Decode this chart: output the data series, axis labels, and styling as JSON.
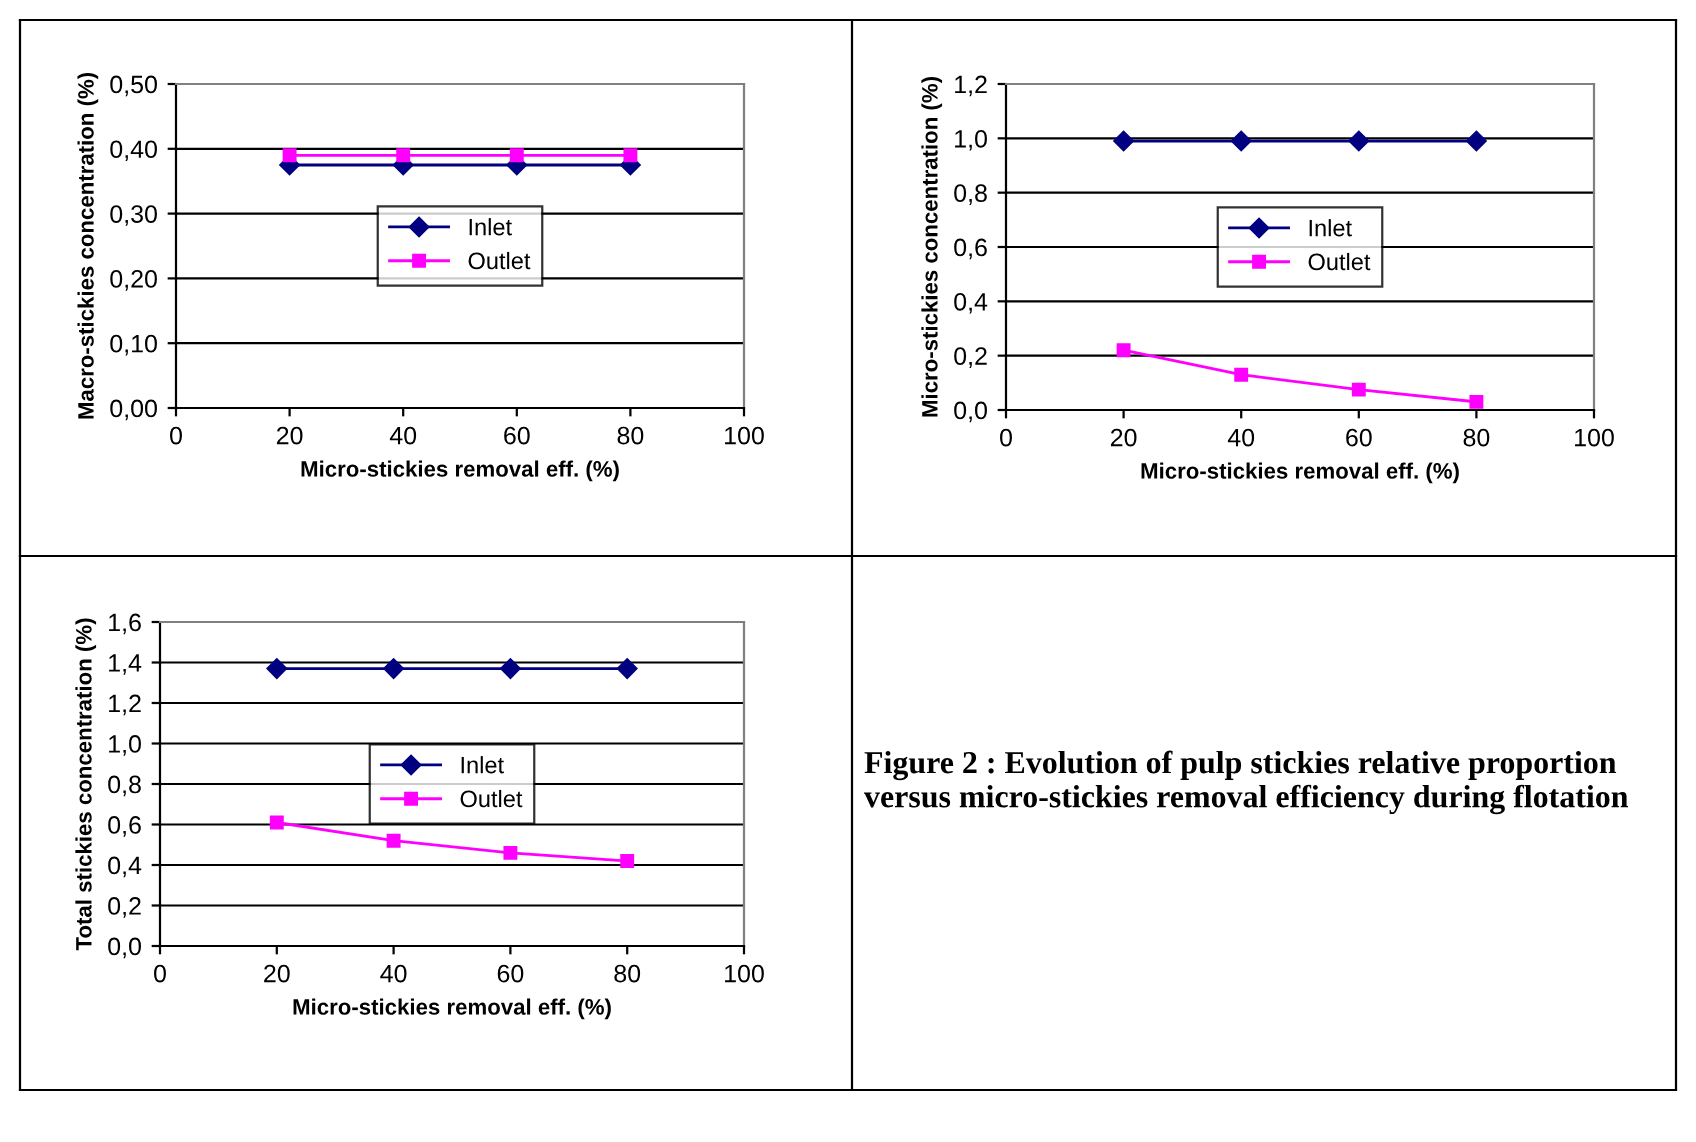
{
  "chart_data": [
    {
      "type": "line",
      "ylabel": "Macro-stickies concentration (%)",
      "xlabel": "Micro-stickies removal eff. (%)",
      "xlim": [
        0,
        100
      ],
      "xticks": [
        0,
        20,
        40,
        60,
        80,
        100
      ],
      "ylim": [
        0,
        0.5
      ],
      "yticks": [
        {
          "value": 0,
          "label": "0,00"
        },
        {
          "value": 0.1,
          "label": "0,10"
        },
        {
          "value": 0.2,
          "label": "0,20"
        },
        {
          "value": 0.3,
          "label": "0,30"
        },
        {
          "value": 0.4,
          "label": "0,40"
        },
        {
          "value": 0.5,
          "label": "0,50"
        }
      ],
      "grid": "y",
      "legend": "center",
      "x": [
        20,
        40,
        60,
        80
      ],
      "series": [
        {
          "name": "Inlet",
          "color": "#000080",
          "marker": "diamond",
          "values": [
            0.375,
            0.375,
            0.375,
            0.375
          ]
        },
        {
          "name": "Outlet",
          "color": "#ff00ff",
          "marker": "square",
          "values": [
            0.39,
            0.39,
            0.39,
            0.39
          ]
        }
      ]
    },
    {
      "type": "line",
      "ylabel": "Micro-stickies concentration (%)",
      "xlabel": "Micro-stickies removal eff. (%)",
      "xlim": [
        0,
        100
      ],
      "xticks": [
        0,
        20,
        40,
        60,
        80,
        100
      ],
      "ylim": [
        0,
        1.2
      ],
      "yticks": [
        {
          "value": 0,
          "label": "0,0"
        },
        {
          "value": 0.2,
          "label": "0,2"
        },
        {
          "value": 0.4,
          "label": "0,4"
        },
        {
          "value": 0.6,
          "label": "0,6"
        },
        {
          "value": 0.8,
          "label": "0,8"
        },
        {
          "value": 1.0,
          "label": "1,0"
        },
        {
          "value": 1.2,
          "label": "1,2"
        }
      ],
      "grid": "y",
      "legend": "center",
      "x": [
        20,
        40,
        60,
        80
      ],
      "series": [
        {
          "name": "Inlet",
          "color": "#000080",
          "marker": "diamond",
          "values": [
            0.99,
            0.99,
            0.99,
            0.99
          ]
        },
        {
          "name": "Outlet",
          "color": "#ff00ff",
          "marker": "square",
          "values": [
            0.22,
            0.13,
            0.075,
            0.03
          ]
        }
      ]
    },
    {
      "type": "line",
      "ylabel": "Total stickies concentration (%)",
      "xlabel": "Micro-stickies removal eff. (%)",
      "xlim": [
        0,
        100
      ],
      "xticks": [
        0,
        20,
        40,
        60,
        80,
        100
      ],
      "ylim": [
        0,
        1.6
      ],
      "yticks": [
        {
          "value": 0,
          "label": "0,0"
        },
        {
          "value": 0.2,
          "label": "0,2"
        },
        {
          "value": 0.4,
          "label": "0,4"
        },
        {
          "value": 0.6,
          "label": "0,6"
        },
        {
          "value": 0.8,
          "label": "0,8"
        },
        {
          "value": 1.0,
          "label": "1,0"
        },
        {
          "value": 1.2,
          "label": "1,2"
        },
        {
          "value": 1.4,
          "label": "1,4"
        },
        {
          "value": 1.6,
          "label": "1,6"
        }
      ],
      "grid": "y",
      "legend": "center",
      "x": [
        20,
        40,
        60,
        80
      ],
      "series": [
        {
          "name": "Inlet",
          "color": "#000080",
          "marker": "diamond",
          "values": [
            1.37,
            1.37,
            1.37,
            1.37
          ]
        },
        {
          "name": "Outlet",
          "color": "#ff00ff",
          "marker": "square",
          "values": [
            0.61,
            0.52,
            0.46,
            0.42
          ]
        }
      ]
    },
    {
      "type": "other",
      "annotations": [
        "Figure 2 : Evolution of pulp stickies relative proportion versus micro-stickies removal efficiency during flotation"
      ]
    }
  ]
}
